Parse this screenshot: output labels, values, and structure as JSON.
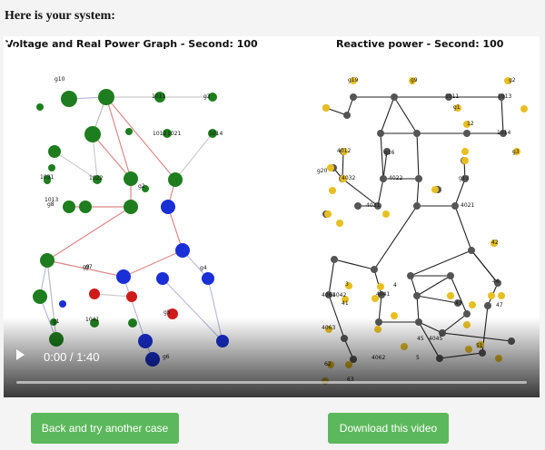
{
  "heading": "Here is your system:",
  "video": {
    "left_title": "Voltage and Real Power Graph - Second: 100",
    "right_title": "Reactive power - Second: 100",
    "time": "0:00 / 1:40",
    "left_node_labels": [
      "g10",
      "1031",
      "1013",
      "1011",
      "1012",
      "1014",
      "g7",
      "g8",
      "g6",
      "g9",
      "1021",
      "1022",
      "g2",
      "g4",
      "g3",
      "1041",
      "g1",
      "g5"
    ],
    "right_node_labels": [
      "g19",
      "g9",
      "1011",
      "1013",
      "g2",
      "g1",
      "1014",
      "g3",
      "12",
      "4012",
      "4022",
      "g16",
      "g13",
      "g20",
      "4021",
      "4031",
      "4032",
      "41",
      "42",
      "4042",
      "4041",
      "46",
      "47",
      "43",
      "4061",
      "4063",
      "4062",
      "4045",
      "51",
      "45",
      "62",
      "63",
      "3",
      "4",
      "5"
    ]
  },
  "buttons": {
    "back": "Back and try another case",
    "download": "Download this video"
  }
}
